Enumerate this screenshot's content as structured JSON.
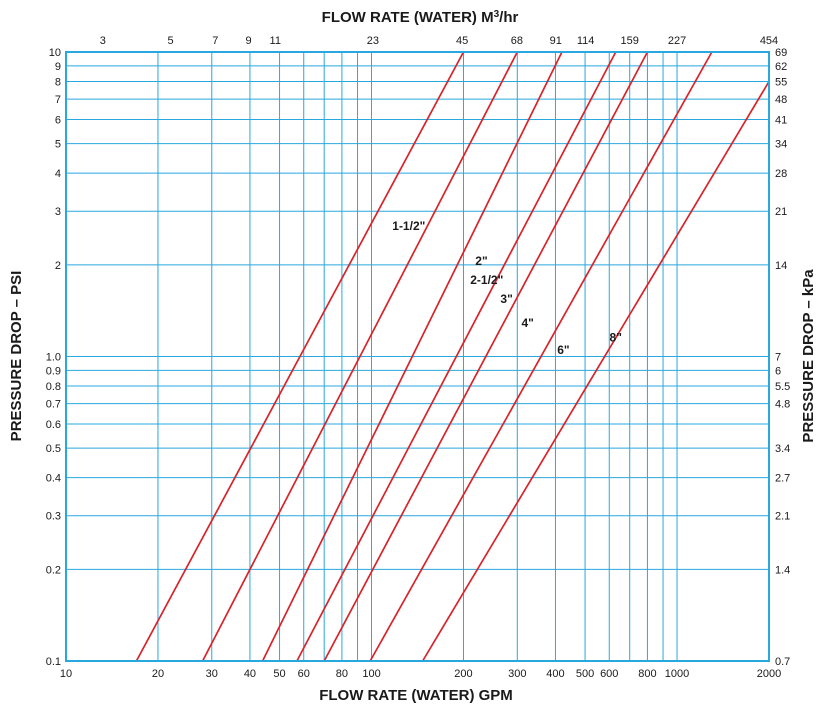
{
  "colors": {
    "grid": "#29a8e0",
    "curve": "#d8232a",
    "text": "#1a1a1a"
  },
  "chart_data": {
    "type": "line",
    "x_scale": "log",
    "y_scale": "log",
    "grid": true,
    "title_top": "FLOW RATE (WATER) M",
    "title_top_sup": "3",
    "title_top_suffix": "/hr",
    "xlabel": "FLOW RATE (WATER) GPM",
    "ylabel_left": "PRESSURE DROP – PSI",
    "ylabel_right": "PRESSURE DROP – kPa",
    "xlim": [
      10,
      2000
    ],
    "ylim": [
      0.1,
      10
    ],
    "x_ticks": [
      10,
      20,
      30,
      40,
      50,
      60,
      80,
      100,
      200,
      300,
      400,
      500,
      600,
      800,
      1000,
      2000
    ],
    "x_tick_labels": [
      "10",
      "20",
      "30",
      "40",
      "50",
      "60",
      "80",
      "100",
      "200",
      "300",
      "400",
      "500",
      "600",
      "800",
      "1000",
      "2000"
    ],
    "x_grid": [
      10,
      20,
      30,
      40,
      50,
      60,
      70,
      80,
      90,
      100,
      200,
      300,
      400,
      500,
      600,
      700,
      800,
      900,
      1000,
      2000
    ],
    "y_ticks": [
      0.1,
      0.2,
      0.3,
      0.4,
      0.5,
      0.6,
      0.7,
      0.8,
      0.9,
      1.0,
      2,
      3,
      4,
      5,
      6,
      7,
      8,
      9,
      10
    ],
    "y_tick_labels": [
      "0.1",
      "0.2",
      "0.3",
      "0.4",
      "0.5",
      "0.6",
      "0.7",
      "0.8",
      "0.9",
      "1.0",
      "2",
      "3",
      "4",
      "5",
      "6",
      "7",
      "8",
      "9",
      "10"
    ],
    "top_ticks": [
      {
        "gpm": 13.2,
        "label": "3"
      },
      {
        "gpm": 22,
        "label": "5"
      },
      {
        "gpm": 30.8,
        "label": "7"
      },
      {
        "gpm": 39.6,
        "label": "9"
      },
      {
        "gpm": 48.4,
        "label": "11"
      },
      {
        "gpm": 101,
        "label": "23"
      },
      {
        "gpm": 198,
        "label": "45"
      },
      {
        "gpm": 299,
        "label": "68"
      },
      {
        "gpm": 401,
        "label": "91"
      },
      {
        "gpm": 502,
        "label": "114"
      },
      {
        "gpm": 700,
        "label": "159"
      },
      {
        "gpm": 1000,
        "label": "227"
      },
      {
        "gpm": 2000,
        "label": "454"
      }
    ],
    "right_ticks": [
      {
        "psi": 10,
        "label": "69"
      },
      {
        "psi": 9,
        "label": "62"
      },
      {
        "psi": 8,
        "label": "55"
      },
      {
        "psi": 7,
        "label": "48"
      },
      {
        "psi": 6,
        "label": "41"
      },
      {
        "psi": 5,
        "label": "34"
      },
      {
        "psi": 4,
        "label": "28"
      },
      {
        "psi": 3,
        "label": "21"
      },
      {
        "psi": 2,
        "label": "14"
      },
      {
        "psi": 1.0,
        "label": "7"
      },
      {
        "psi": 0.9,
        "label": "6"
      },
      {
        "psi": 0.8,
        "label": "5.5"
      },
      {
        "psi": 0.7,
        "label": "4.8"
      },
      {
        "psi": 0.5,
        "label": "3.4"
      },
      {
        "psi": 0.4,
        "label": "2.7"
      },
      {
        "psi": 0.3,
        "label": "2.1"
      },
      {
        "psi": 0.2,
        "label": "1.4"
      },
      {
        "psi": 0.1,
        "label": "0.7"
      }
    ],
    "series": [
      {
        "name": "1-1/2\"",
        "points": [
          [
            17,
            0.1
          ],
          [
            200,
            10
          ]
        ],
        "label_at": [
          150,
          2.6
        ]
      },
      {
        "name": "2\"",
        "points": [
          [
            28,
            0.1
          ],
          [
            300,
            10
          ]
        ],
        "label_at": [
          240,
          2.0
        ]
      },
      {
        "name": "2-1/2\"",
        "points": [
          [
            44,
            0.1
          ],
          [
            420,
            10
          ]
        ],
        "label_at": [
          270,
          1.73
        ]
      },
      {
        "name": "3\"",
        "points": [
          [
            57,
            0.1
          ],
          [
            630,
            10
          ]
        ],
        "label_at": [
          290,
          1.5
        ]
      },
      {
        "name": "4\"",
        "points": [
          [
            70,
            0.1
          ],
          [
            800,
            10
          ]
        ],
        "label_at": [
          340,
          1.25
        ]
      },
      {
        "name": "6\"",
        "points": [
          [
            99,
            0.1
          ],
          [
            1300,
            10
          ]
        ],
        "label_at": [
          445,
          1.02
        ]
      },
      {
        "name": "8\"",
        "points": [
          [
            147,
            0.1
          ],
          [
            2000,
            8.0
          ]
        ],
        "label_at": [
          660,
          1.12
        ]
      }
    ]
  }
}
